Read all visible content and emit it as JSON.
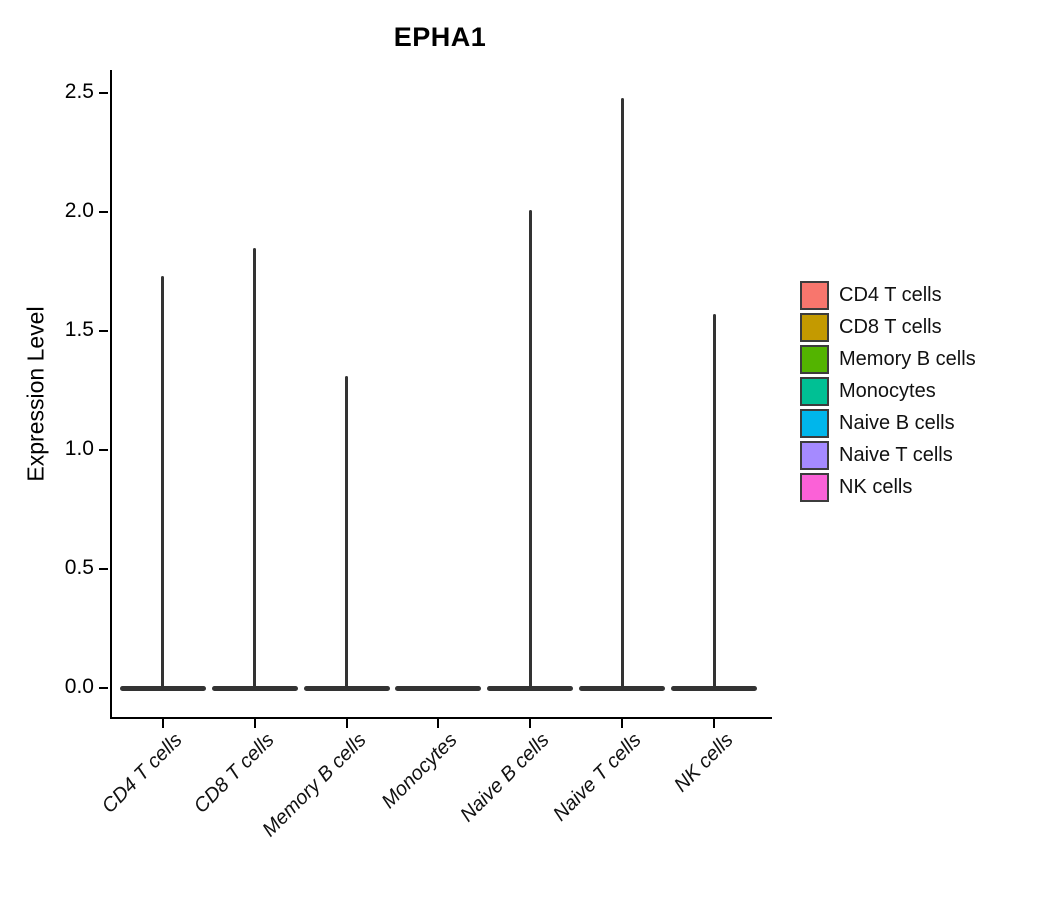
{
  "chart_data": {
    "type": "violin",
    "title": "EPHA1",
    "ylabel": "Expression Level",
    "categories": [
      "CD4 T cells",
      "CD8 T cells",
      "Memory B cells",
      "Monocytes",
      "Naive B cells",
      "Naive T cells",
      "NK cells"
    ],
    "violins": [
      {
        "category": "CD4 T cells",
        "color": "#F8766D",
        "baseline": 0.0,
        "peak": 1.73
      },
      {
        "category": "CD8 T cells",
        "color": "#C49A00",
        "baseline": 0.0,
        "peak": 1.85
      },
      {
        "category": "Memory B cells",
        "color": "#53B400",
        "baseline": 0.0,
        "peak": 1.31
      },
      {
        "category": "Monocytes",
        "color": "#00C094",
        "baseline": 0.0,
        "peak": 0.0
      },
      {
        "category": "Naive B cells",
        "color": "#00B6EB",
        "baseline": 0.0,
        "peak": 2.01
      },
      {
        "category": "Naive T cells",
        "color": "#A58AFF",
        "baseline": 0.0,
        "peak": 2.48
      },
      {
        "category": "NK cells",
        "color": "#FB61D7",
        "baseline": 0.0,
        "peak": 1.57
      }
    ],
    "yticks": [
      "0.0",
      "0.5",
      "1.0",
      "1.5",
      "2.0",
      "2.5"
    ],
    "ylim": [
      0,
      2.6
    ],
    "grid": false,
    "legend_position": "right",
    "colors": {
      "violin_line": "#333333",
      "axis": "#000000",
      "text": "#000000",
      "background": "#FFFFFF"
    }
  }
}
